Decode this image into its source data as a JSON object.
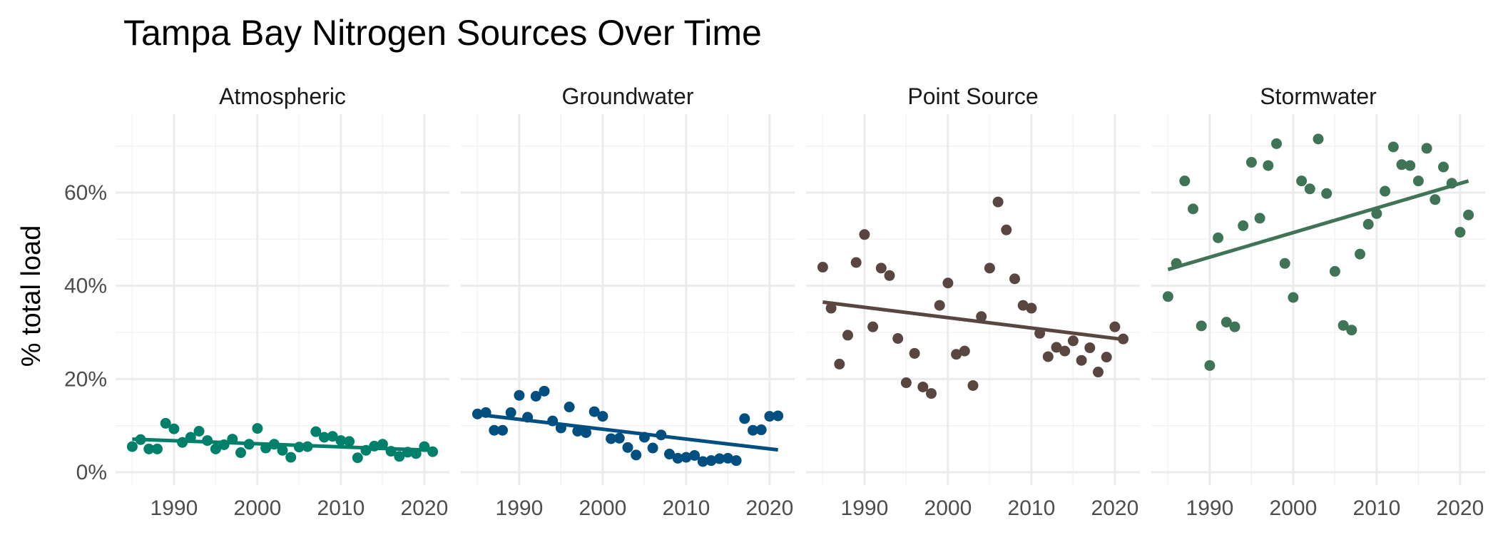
{
  "chart_data": {
    "type": "scatter",
    "title": "Tampa Bay Nitrogen Sources Over Time",
    "xlabel": "",
    "ylabel": "% total load",
    "xlim": [
      1983,
      2023
    ],
    "ylim": [
      -2,
      75
    ],
    "x_ticks": [
      1990,
      2000,
      2010,
      2020
    ],
    "y_ticks": [
      0,
      20,
      40,
      60
    ],
    "y_tick_labels": [
      "0%",
      "20%",
      "40%",
      "60%"
    ],
    "grid": true,
    "trend_line": "linear fit per panel",
    "panels": [
      {
        "name": "Atmospheric",
        "color": "#00806b",
        "trend": {
          "x": [
            1985,
            2021
          ],
          "y": [
            7.1,
            4.7
          ]
        },
        "points": [
          [
            1985,
            5.5
          ],
          [
            1986,
            7.0
          ],
          [
            1987,
            5.0
          ],
          [
            1988,
            5.0
          ],
          [
            1989,
            10.5
          ],
          [
            1990,
            9.3
          ],
          [
            1991,
            6.4
          ],
          [
            1992,
            7.5
          ],
          [
            1993,
            8.8
          ],
          [
            1994,
            6.8
          ],
          [
            1995,
            5.0
          ],
          [
            1996,
            5.9
          ],
          [
            1997,
            7.1
          ],
          [
            1998,
            4.2
          ],
          [
            1999,
            6.0
          ],
          [
            2000,
            9.4
          ],
          [
            2001,
            5.2
          ],
          [
            2002,
            6.0
          ],
          [
            2003,
            4.7
          ],
          [
            2004,
            3.2
          ],
          [
            2005,
            5.4
          ],
          [
            2006,
            5.5
          ],
          [
            2007,
            8.7
          ],
          [
            2008,
            7.5
          ],
          [
            2009,
            7.7
          ],
          [
            2010,
            6.8
          ],
          [
            2011,
            6.6
          ],
          [
            2012,
            3.1
          ],
          [
            2013,
            4.7
          ],
          [
            2014,
            5.6
          ],
          [
            2015,
            6.0
          ],
          [
            2016,
            4.5
          ],
          [
            2017,
            3.4
          ],
          [
            2018,
            4.3
          ],
          [
            2019,
            4.0
          ],
          [
            2020,
            5.5
          ],
          [
            2021,
            4.4
          ]
        ]
      },
      {
        "name": "Groundwater",
        "color": "#004f80",
        "trend": {
          "x": [
            1985,
            2021
          ],
          "y": [
            12.4,
            4.8
          ]
        },
        "points": [
          [
            1985,
            12.5
          ],
          [
            1986,
            12.8
          ],
          [
            1987,
            9.0
          ],
          [
            1988,
            9.0
          ],
          [
            1989,
            12.8
          ],
          [
            1990,
            16.5
          ],
          [
            1991,
            11.8
          ],
          [
            1992,
            16.3
          ],
          [
            1993,
            17.4
          ],
          [
            1994,
            11.0
          ],
          [
            1995,
            9.5
          ],
          [
            1996,
            14.0
          ],
          [
            1997,
            8.8
          ],
          [
            1998,
            8.5
          ],
          [
            1999,
            13.0
          ],
          [
            2000,
            12.0
          ],
          [
            2001,
            7.2
          ],
          [
            2002,
            7.3
          ],
          [
            2003,
            5.3
          ],
          [
            2004,
            3.7
          ],
          [
            2005,
            7.5
          ],
          [
            2006,
            5.2
          ],
          [
            2007,
            8.0
          ],
          [
            2008,
            3.9
          ],
          [
            2009,
            3.0
          ],
          [
            2010,
            3.2
          ],
          [
            2011,
            3.6
          ],
          [
            2012,
            2.3
          ],
          [
            2013,
            2.5
          ],
          [
            2014,
            2.9
          ],
          [
            2015,
            3.0
          ],
          [
            2016,
            2.5
          ],
          [
            2017,
            11.5
          ],
          [
            2018,
            9.0
          ],
          [
            2019,
            9.1
          ],
          [
            2020,
            12.0
          ],
          [
            2021,
            12.1
          ]
        ]
      },
      {
        "name": "Point Source",
        "color": "#594640",
        "trend": {
          "x": [
            1985,
            2021
          ],
          "y": [
            36.5,
            28.5
          ]
        },
        "points": [
          [
            1985,
            44.0
          ],
          [
            1986,
            35.2
          ],
          [
            1987,
            23.2
          ],
          [
            1988,
            29.4
          ],
          [
            1989,
            45.0
          ],
          [
            1990,
            51.0
          ],
          [
            1991,
            31.2
          ],
          [
            1992,
            43.8
          ],
          [
            1993,
            42.2
          ],
          [
            1994,
            28.7
          ],
          [
            1995,
            19.2
          ],
          [
            1996,
            25.5
          ],
          [
            1997,
            18.3
          ],
          [
            1998,
            16.9
          ],
          [
            1999,
            35.8
          ],
          [
            2000,
            40.6
          ],
          [
            2001,
            25.3
          ],
          [
            2002,
            26.0
          ],
          [
            2003,
            18.6
          ],
          [
            2004,
            33.4
          ],
          [
            2005,
            43.8
          ],
          [
            2006,
            58.0
          ],
          [
            2007,
            52.0
          ],
          [
            2008,
            41.5
          ],
          [
            2009,
            35.8
          ],
          [
            2010,
            35.2
          ],
          [
            2011,
            29.8
          ],
          [
            2012,
            24.8
          ],
          [
            2013,
            26.8
          ],
          [
            2014,
            26.0
          ],
          [
            2015,
            28.2
          ],
          [
            2016,
            24.0
          ],
          [
            2017,
            26.7
          ],
          [
            2018,
            21.5
          ],
          [
            2019,
            24.7
          ],
          [
            2020,
            31.2
          ],
          [
            2021,
            28.6
          ]
        ]
      },
      {
        "name": "Stormwater",
        "color": "#3f7556",
        "trend": {
          "x": [
            1985,
            2021
          ],
          "y": [
            43.5,
            62.5
          ]
        },
        "points": [
          [
            1985,
            37.7
          ],
          [
            1986,
            44.8
          ],
          [
            1987,
            62.5
          ],
          [
            1988,
            56.5
          ],
          [
            1989,
            31.4
          ],
          [
            1990,
            22.9
          ],
          [
            1991,
            50.3
          ],
          [
            1992,
            32.2
          ],
          [
            1993,
            31.2
          ],
          [
            1994,
            52.9
          ],
          [
            1995,
            66.5
          ],
          [
            1996,
            54.5
          ],
          [
            1997,
            65.8
          ],
          [
            1998,
            70.5
          ],
          [
            1999,
            44.8
          ],
          [
            2000,
            37.5
          ],
          [
            2001,
            62.5
          ],
          [
            2002,
            60.8
          ],
          [
            2003,
            71.5
          ],
          [
            2004,
            59.8
          ],
          [
            2005,
            43.1
          ],
          [
            2006,
            31.5
          ],
          [
            2007,
            30.5
          ],
          [
            2008,
            46.8
          ],
          [
            2009,
            53.2
          ],
          [
            2010,
            55.5
          ],
          [
            2011,
            60.3
          ],
          [
            2012,
            69.8
          ],
          [
            2013,
            66.0
          ],
          [
            2014,
            65.8
          ],
          [
            2015,
            62.5
          ],
          [
            2016,
            69.5
          ],
          [
            2017,
            58.5
          ],
          [
            2018,
            65.5
          ],
          [
            2019,
            62.0
          ],
          [
            2020,
            51.5
          ],
          [
            2021,
            55.2
          ]
        ]
      }
    ]
  }
}
